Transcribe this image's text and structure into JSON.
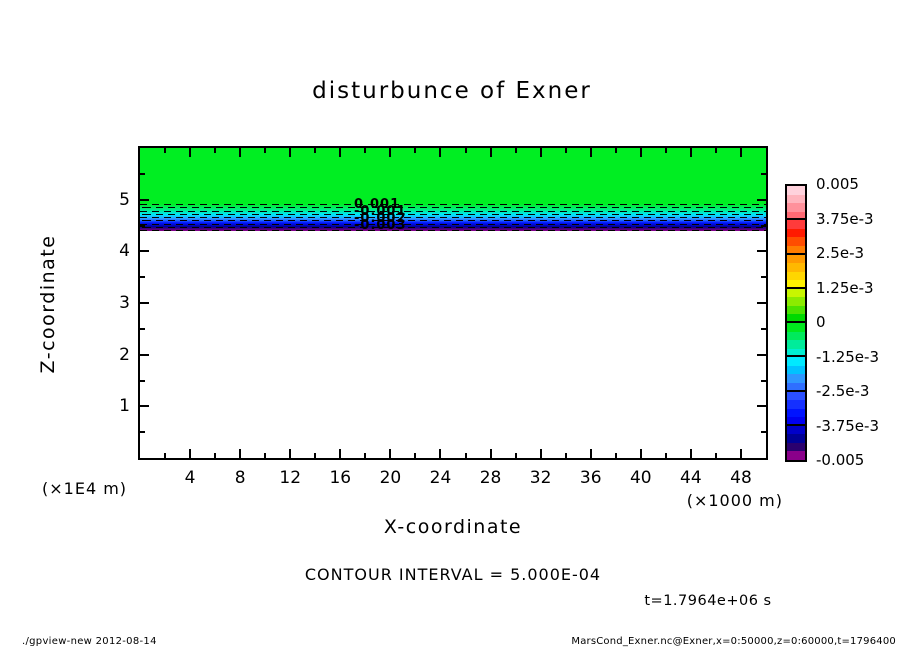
{
  "title": "disturbunce of Exner",
  "axes": {
    "x": {
      "title": "X-coordinate",
      "unit": "(×1000 m)",
      "range": [
        0,
        50
      ],
      "major_ticks": [
        4,
        8,
        12,
        16,
        20,
        24,
        28,
        32,
        36,
        40,
        44,
        48
      ],
      "minor_step": 2
    },
    "y": {
      "title": "Z-coordinate",
      "unit": "(×1E4 m)",
      "range": [
        0,
        6
      ],
      "major_ticks": [
        1,
        2,
        3,
        4,
        5
      ],
      "minor_step": 0.5
    }
  },
  "field": {
    "upper_fill_color": "#00ee22",
    "band_gradient": [
      "#00ee22 0%",
      "#00ed8a 22%",
      "#00e6ff 40%",
      "#2e8fff 56%",
      "#0013ff 70%",
      "#000096 84%",
      "#58007a 94%",
      "#900090 100%"
    ],
    "dashed_line_count": 9,
    "contour_labels": [
      "0.001",
      "-0.001",
      "-0.002",
      "-0.003"
    ]
  },
  "colorbar": {
    "labels": [
      "0.005",
      "3.75e-3",
      "2.5e-3",
      "1.25e-3",
      "0",
      "-1.25e-3",
      "-2.5e-3",
      "-3.75e-3",
      "-0.005"
    ],
    "segments": [
      [
        "#ffd2dc",
        "#ffb4bd",
        "#ff919b",
        "#ff6a74"
      ],
      [
        "#ff3b3b",
        "#ff1a00",
        "#ff4d00",
        "#ff7d00"
      ],
      [
        "#ff9a00",
        "#ffb800",
        "#ffd600",
        "#fff200"
      ],
      [
        "#c8f600",
        "#8ceb00",
        "#4ce200",
        "#00d900"
      ],
      [
        "#00e81e",
        "#00ea5c",
        "#00ec9a",
        "#00eed2"
      ],
      [
        "#00e9ff",
        "#00c2ff",
        "#2e97ff",
        "#2f6fff"
      ],
      [
        "#2b50ff",
        "#1530ff",
        "#0013ff",
        "#0000f0"
      ],
      [
        "#0000c8",
        "#000096",
        "#2a006e",
        "#8a008a"
      ]
    ]
  },
  "annotations": {
    "contour_interval": "CONTOUR INTERVAL = 5.000E-04",
    "time": "t=1.7964e+06 s"
  },
  "footer": {
    "left": "./gpview-new  2012-08-14",
    "right": "MarsCond_Exner.nc@Exner,x=0:50000,z=0:60000,t=1796400"
  },
  "chart_data": {
    "type": "heatmap",
    "subtype": "filled_contour_with_dashed_negative_contours",
    "title": "disturbunce of Exner",
    "xlabel": "X-coordinate",
    "x_unit_factor": "×1000 m",
    "xlim": [
      0,
      50
    ],
    "x_ticks": [
      4,
      8,
      12,
      16,
      20,
      24,
      28,
      32,
      36,
      40,
      44,
      48
    ],
    "ylabel": "Z-coordinate",
    "y_unit_factor": "×1E4 m",
    "ylim": [
      0,
      6
    ],
    "y_ticks": [
      1,
      2,
      3,
      4,
      5
    ],
    "contour_interval": 0.0005,
    "colorbar_levels": [
      -0.005,
      -0.00375,
      -0.0025,
      -0.00125,
      0,
      0.00125,
      0.0025,
      0.00375,
      0.005
    ],
    "legend_position": "right",
    "time_seconds": 1796400,
    "layers": [
      {
        "z_range_1e4m": [
          4.9,
          6.0
        ],
        "value": 0,
        "rendering": "uniform green fill across all x"
      },
      {
        "z_range_1e4m": [
          4.35,
          4.9
        ],
        "value_range": [
          -0.005,
          0
        ],
        "rendering": "thin horizontally-uniform transition band, green to cyan to blue to purple, with ~9 dense dashed negative contour lines and overlapping contour labels near x=18"
      },
      {
        "z_range_1e4m": [
          0,
          4.35
        ],
        "value": null,
        "rendering": "white / below color range"
      }
    ]
  }
}
